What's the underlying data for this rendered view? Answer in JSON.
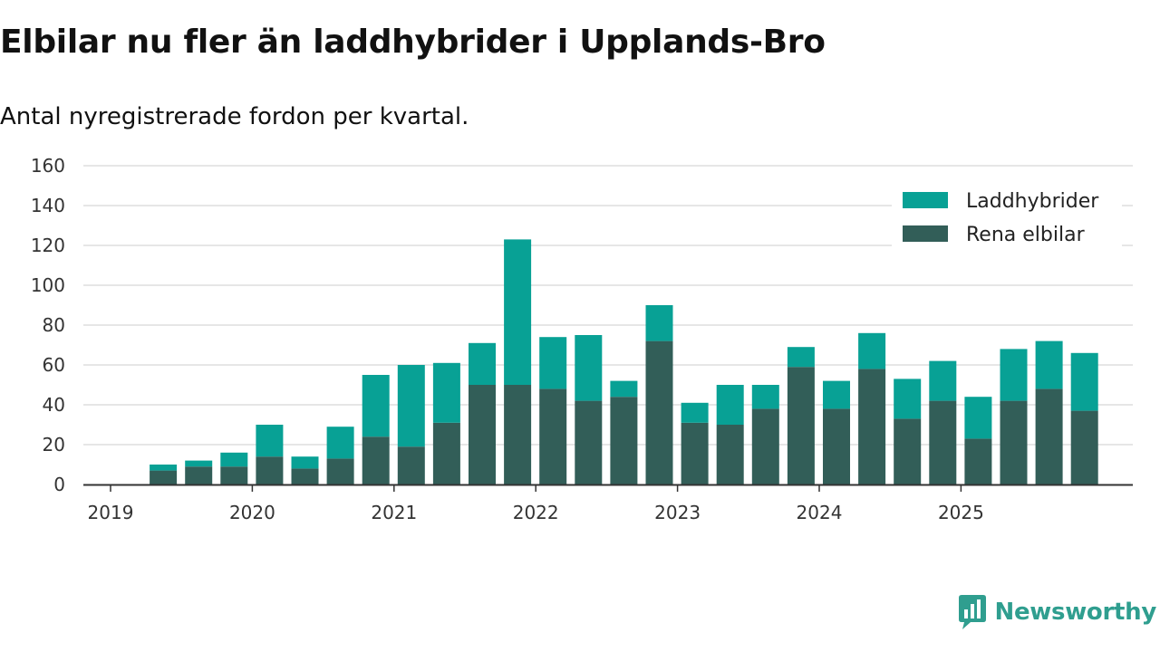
{
  "header": {
    "title": "Elbilar nu fler än laddhybrider i Upplands-Bro",
    "subtitle": "Antal nyregistrerade fordon per kvartal."
  },
  "brand": {
    "name": "Newsworthy",
    "icon": "newsworthy-logo-icon"
  },
  "colors": {
    "laddhybrider": "#08a195",
    "rena_elbilar": "#325e58",
    "grid": "#dddddd",
    "axis": "#333333",
    "brand": "#2f9e8f"
  },
  "chart_data": {
    "type": "bar",
    "stacked": true,
    "title": "Elbilar nu fler än laddhybrider i Upplands-Bro",
    "subtitle": "Antal nyregistrerade fordon per kvartal.",
    "xlabel": "",
    "ylabel": "",
    "ylim": [
      0,
      160
    ],
    "yticks": [
      0,
      20,
      40,
      60,
      80,
      100,
      120,
      140,
      160
    ],
    "xticks": [
      "2019",
      "2020",
      "2021",
      "2022",
      "2023",
      "2024",
      "2025"
    ],
    "grid": true,
    "legend_position": "top-right",
    "categories": [
      "2019Q2",
      "2019Q3",
      "2019Q4",
      "2020Q1",
      "2020Q2",
      "2020Q3",
      "2020Q4",
      "2021Q1",
      "2021Q2",
      "2021Q3",
      "2021Q4",
      "2022Q1",
      "2022Q2",
      "2022Q3",
      "2022Q4",
      "2023Q1",
      "2023Q2",
      "2023Q3",
      "2023Q4",
      "2024Q1",
      "2024Q2",
      "2024Q3",
      "2024Q4",
      "2025Q1",
      "2025Q2",
      "2025Q3",
      "2025Q4"
    ],
    "series": [
      {
        "name": "Rena elbilar",
        "values": [
          7,
          9,
          9,
          14,
          8,
          13,
          24,
          19,
          31,
          50,
          50,
          48,
          42,
          44,
          72,
          31,
          30,
          38,
          59,
          38,
          58,
          33,
          42,
          23,
          42,
          48,
          37
        ]
      },
      {
        "name": "Laddhybrider",
        "values": [
          3,
          3,
          7,
          16,
          6,
          16,
          31,
          41,
          30,
          21,
          73,
          26,
          33,
          8,
          18,
          10,
          20,
          12,
          10,
          14,
          18,
          20,
          20,
          21,
          26,
          24,
          29
        ]
      }
    ]
  }
}
